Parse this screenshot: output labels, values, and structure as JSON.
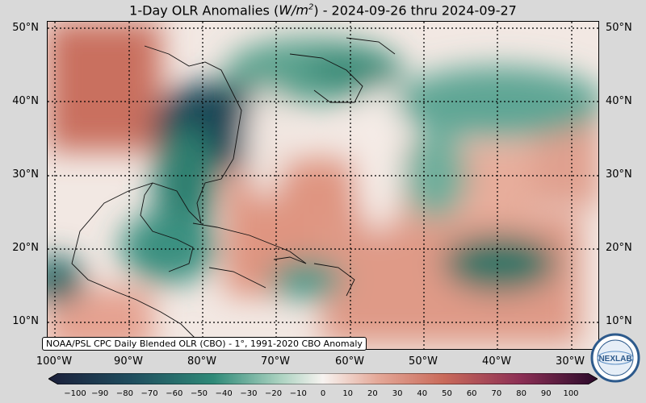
{
  "title_prefix": "1-Day OLR Anomalies (",
  "title_unit_base": "W/m",
  "title_unit_exp": "2",
  "title_suffix": ") - 2024-09-26 thru 2024-09-27",
  "credit": "NOAA/PSL CPC Daily Blended OLR (CBO) - 1°, 1991-2020 CBO Anomaly",
  "lat_labels": [
    "50°N",
    "40°N",
    "30°N",
    "20°N",
    "10°N"
  ],
  "lon_labels": [
    "100°W",
    "90°W",
    "80°W",
    "70°W",
    "60°W",
    "50°W",
    "40°W",
    "30°W"
  ],
  "colorbar_ticks": [
    "−100",
    "−90",
    "−80",
    "−70",
    "−60",
    "−50",
    "−40",
    "−30",
    "−20",
    "−10",
    "0",
    "10",
    "20",
    "30",
    "40",
    "50",
    "60",
    "70",
    "80",
    "90",
    "100"
  ],
  "colors": {
    "neg_strong": "#1f3b4d",
    "neg": "#2e8a78",
    "neutral": "#f4f1ee",
    "pos": "#d9826e",
    "pos_strong": "#5a1a48"
  },
  "logo_text": "NEXLAB"
}
